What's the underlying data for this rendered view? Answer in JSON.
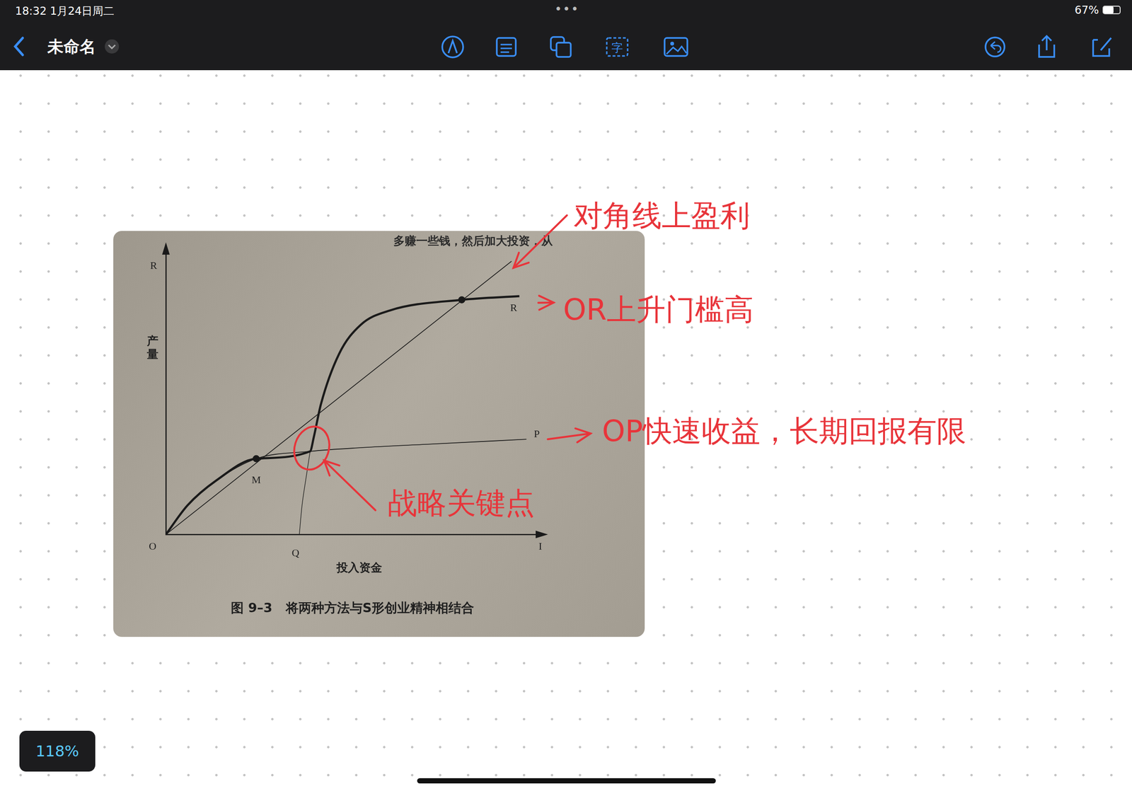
{
  "page": {
    "status_time": "18:32  1月24日周二",
    "status_dots": "•••",
    "battery": "67%",
    "document_title": "未命名",
    "toolbar_text_icon": "字",
    "zoom": "118%"
  },
  "chart_data": {
    "type": "line",
    "title": "图 9–3   将两种方法与S形创业精神相结合",
    "book_text": "多赚一些钱，然后加大投资，从",
    "x_label": "投入资金",
    "y_label": "产量",
    "x_axis_end_label": "I",
    "y_axis_end_label": "R",
    "origin_label": "O",
    "xlim": [
      0,
      100
    ],
    "ylim": [
      0,
      100
    ],
    "xticks": [],
    "yticks": [],
    "tick_labels": false,
    "grid": false,
    "series": [
      {
        "color": "#1a1a1a",
        "line_style": "thin",
        "x": [
          0,
          93
        ],
        "values": [
          0,
          97
        ]
      },
      {
        "end_label": "P",
        "color": "#1a1a1a",
        "line_style": "thin",
        "x": [
          0,
          5.8,
          13.6,
          24.3,
          38.8,
          52.4,
          71.8,
          97
        ],
        "values": [
          0,
          10.3,
          19.2,
          26.9,
          29.5,
          30.8,
          32.1,
          33.8
        ]
      },
      {
        "end_label": "R",
        "color": "#1a1a1a",
        "line_style": "thick",
        "x": [
          0,
          5.8,
          13.6,
          24.3,
          38.8,
          39.8,
          41.7,
          46.6,
          52.4,
          60.2,
          79.6,
          95.1
        ],
        "values": [
          0,
          10.3,
          19.2,
          26.9,
          29.5,
          34.6,
          46.2,
          64.1,
          74.4,
          79.5,
          83.3,
          84.6
        ]
      }
    ],
    "guides": [
      {
        "label": "Q",
        "color": "#1a1a1a",
        "x": [
          35.9,
          36.6,
          37.7,
          38.8
        ],
        "values": [
          0,
          10,
          20,
          29.5
        ]
      }
    ],
    "markers": {
      "marker": "circle",
      "color": "#1a1a1a",
      "points": [
        {
          "x": 24.3,
          "y": 26.9,
          "label": "M"
        },
        {
          "x": 79.6,
          "y": 83.3
        }
      ]
    },
    "annotation_color": "#e8343a",
    "annotations": [
      {
        "text": "对角线上盈利",
        "anchor": {
          "x": 93,
          "y": 97
        }
      },
      {
        "text": "OR上升门槛高",
        "anchor": {
          "x": 95.1,
          "y": 84.6
        }
      },
      {
        "text": "OP快速收益，长期回报有限",
        "anchor": {
          "x": 97,
          "y": 33.8
        }
      },
      {
        "text": "战略关键点",
        "anchor": {
          "x": 39.5,
          "y": 32
        }
      }
    ]
  }
}
